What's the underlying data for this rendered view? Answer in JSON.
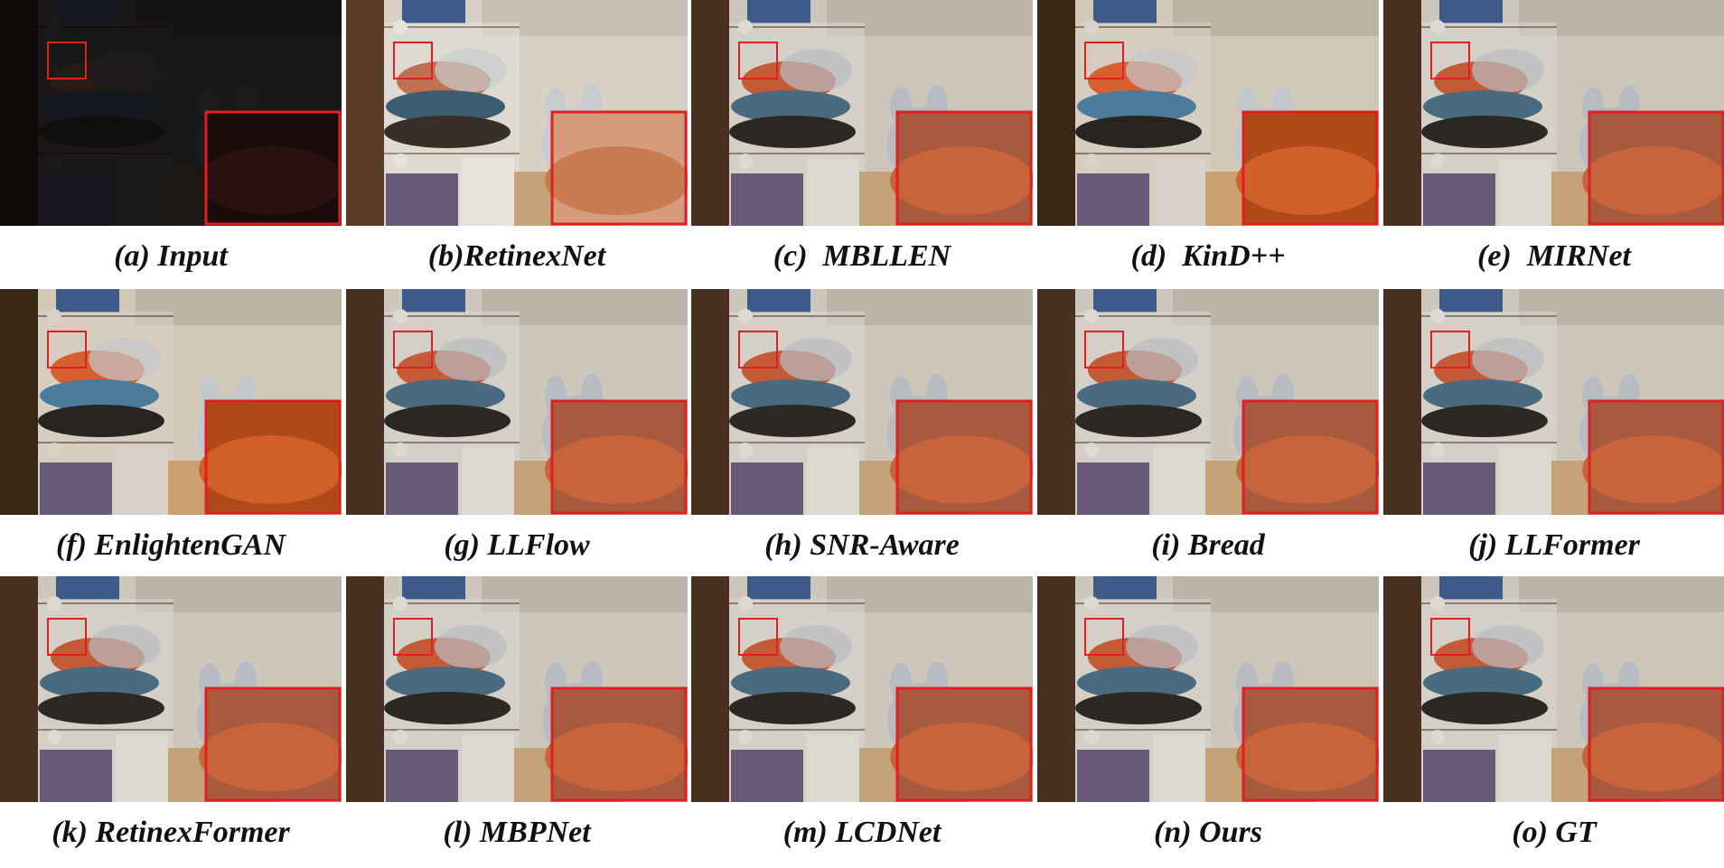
{
  "panels": [
    {
      "label": "(a) Input",
      "tone": "dark"
    },
    {
      "label": "(b)RetinexNet",
      "tone": "retinex"
    },
    {
      "label": "(c)  MBLLEN",
      "tone": "normal"
    },
    {
      "label": "(d)  KinD++",
      "tone": "warm"
    },
    {
      "label": "(e)  MIRNet",
      "tone": "normal"
    },
    {
      "label": "(f) EnlightenGAN",
      "tone": "warm"
    },
    {
      "label": "(g) LLFlow",
      "tone": "normal"
    },
    {
      "label": "(h) SNR-Aware",
      "tone": "normal"
    },
    {
      "label": "(i) Bread",
      "tone": "normal"
    },
    {
      "label": "(j) LLFormer",
      "tone": "normal"
    },
    {
      "label": "(k) RetinexFormer",
      "tone": "normal"
    },
    {
      "label": "(l) MBPNet",
      "tone": "normal"
    },
    {
      "label": "(m) LCDNet",
      "tone": "normal"
    },
    {
      "label": "(n) Ours",
      "tone": "normal"
    },
    {
      "label": "(o) GT",
      "tone": "normal"
    }
  ],
  "colors": {
    "zoom_box": "#e02020"
  }
}
